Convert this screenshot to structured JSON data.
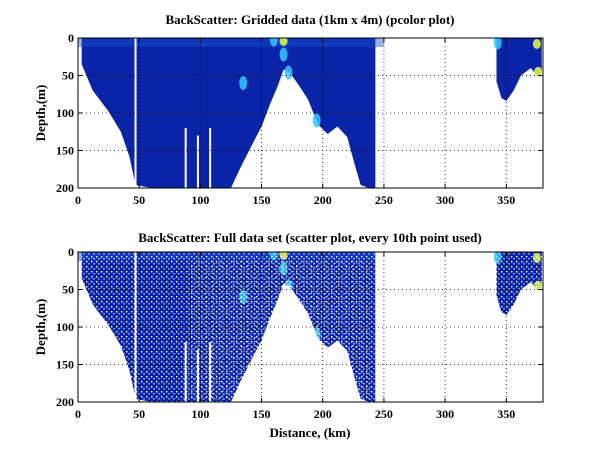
{
  "chart_data": [
    {
      "type": "heatmap",
      "title": "BackScatter: Gridded data (1km x 4m) (pcolor plot)",
      "xlabel": "",
      "ylabel": "Depth,(m)",
      "xlim": [
        0,
        380
      ],
      "ylim": [
        0,
        200
      ],
      "y_reversed": true,
      "xticks": [
        0,
        50,
        100,
        150,
        200,
        250,
        300,
        350
      ],
      "yticks": [
        0,
        50,
        100,
        150,
        200
      ],
      "grid": "dotted",
      "colormap": "jet",
      "colors": {
        "base": "#0a24a8",
        "high": "#35c8ff",
        "peak": "#e8ff4a"
      },
      "bottom_profile": [
        {
          "x": 3,
          "depth": 35
        },
        {
          "x": 12,
          "depth": 70
        },
        {
          "x": 25,
          "depth": 98
        },
        {
          "x": 35,
          "depth": 125
        },
        {
          "x": 42,
          "depth": 158
        },
        {
          "x": 47,
          "depth": 196
        },
        {
          "x": 60,
          "depth": 200
        },
        {
          "x": 80,
          "depth": 200
        },
        {
          "x": 100,
          "depth": 200
        },
        {
          "x": 125,
          "depth": 200
        },
        {
          "x": 133,
          "depth": 172
        },
        {
          "x": 143,
          "depth": 140
        },
        {
          "x": 150,
          "depth": 118
        },
        {
          "x": 157,
          "depth": 88
        },
        {
          "x": 163,
          "depth": 65
        },
        {
          "x": 168,
          "depth": 42
        },
        {
          "x": 173,
          "depth": 46
        },
        {
          "x": 180,
          "depth": 62
        },
        {
          "x": 188,
          "depth": 82
        },
        {
          "x": 196,
          "depth": 115
        },
        {
          "x": 204,
          "depth": 128
        },
        {
          "x": 212,
          "depth": 118
        },
        {
          "x": 220,
          "depth": 132
        },
        {
          "x": 226,
          "depth": 168
        },
        {
          "x": 231,
          "depth": 196
        },
        {
          "x": 238,
          "depth": 200
        },
        {
          "x": 243,
          "depth": 200
        },
        {
          "x": 243,
          "depth": 0
        }
      ],
      "bottom_profile_2": [
        {
          "x": 342,
          "depth": 0
        },
        {
          "x": 342,
          "depth": 58
        },
        {
          "x": 346,
          "depth": 80
        },
        {
          "x": 350,
          "depth": 84
        },
        {
          "x": 356,
          "depth": 70
        },
        {
          "x": 362,
          "depth": 50
        },
        {
          "x": 370,
          "depth": 40
        },
        {
          "x": 376,
          "depth": 52
        },
        {
          "x": 379,
          "depth": 46
        },
        {
          "x": 379,
          "depth": 0
        }
      ],
      "gaps": [
        {
          "x": 47,
          "depth_from": 0,
          "depth_to": 200
        },
        {
          "x": 88,
          "depth_from": 120,
          "depth_to": 200
        },
        {
          "x": 98,
          "depth_from": 130,
          "depth_to": 200
        },
        {
          "x": 108,
          "depth_from": 120,
          "depth_to": 200
        }
      ],
      "hotspots": [
        {
          "x": 168,
          "depth": 4,
          "level": "peak"
        },
        {
          "x": 168,
          "depth": 22,
          "level": "high"
        },
        {
          "x": 172,
          "depth": 46,
          "level": "high"
        },
        {
          "x": 135,
          "depth": 60,
          "level": "high"
        },
        {
          "x": 160,
          "depth": 2,
          "level": "high"
        },
        {
          "x": 195,
          "depth": 110,
          "level": "high"
        },
        {
          "x": 375,
          "depth": 8,
          "level": "peak"
        },
        {
          "x": 376,
          "depth": 45,
          "level": "peak"
        },
        {
          "x": 343,
          "depth": 6,
          "level": "high"
        }
      ]
    },
    {
      "type": "scatter",
      "title": "BackScatter: Full data set (scatter plot, every 10th point used)",
      "xlabel": "Distance, (km)",
      "ylabel": "Depth,(m)",
      "xlim": [
        0,
        380
      ],
      "ylim": [
        0,
        200
      ],
      "y_reversed": true,
      "xticks": [
        0,
        50,
        100,
        150,
        200,
        250,
        300,
        350
      ],
      "yticks": [
        0,
        50,
        100,
        150,
        200
      ],
      "grid": "dotted",
      "colormap": "jet",
      "same_region_as_first_plot": true
    }
  ]
}
